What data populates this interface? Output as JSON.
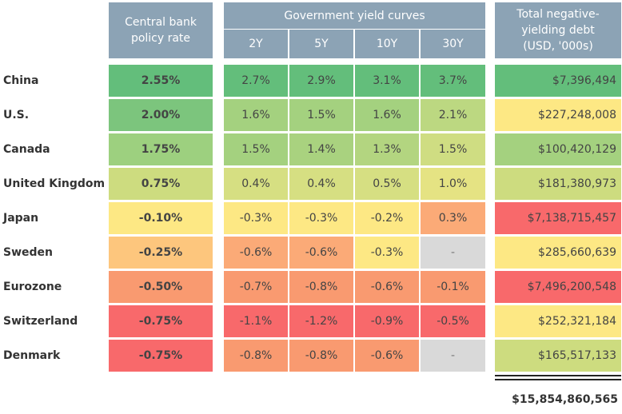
{
  "headers": {
    "policy_rate": "Central bank policy rate",
    "yield_curves": "Government yield curves",
    "tenors": [
      "2Y",
      "5Y",
      "10Y",
      "30Y"
    ],
    "debt": "Total negative-yielding debt (USD, '000s)"
  },
  "chart_data": {
    "type": "table",
    "columns": [
      "Central bank policy rate",
      "2Y",
      "5Y",
      "10Y",
      "30Y",
      "Total negative-yielding debt (USD, '000s)"
    ],
    "rows": [
      {
        "country": "China",
        "rate": "2.55%",
        "yields": [
          "2.7%",
          "2.9%",
          "3.1%",
          "3.7%"
        ],
        "debt": "$7,396,494"
      },
      {
        "country": "U.S.",
        "rate": "2.00%",
        "yields": [
          "1.6%",
          "1.5%",
          "1.6%",
          "2.1%"
        ],
        "debt": "$227,248,008"
      },
      {
        "country": "Canada",
        "rate": "1.75%",
        "yields": [
          "1.5%",
          "1.4%",
          "1.3%",
          "1.5%"
        ],
        "debt": "$100,420,129"
      },
      {
        "country": "United Kingdom",
        "rate": "0.75%",
        "yields": [
          "0.4%",
          "0.4%",
          "0.5%",
          "1.0%"
        ],
        "debt": "$181,380,973"
      },
      {
        "country": "Japan",
        "rate": "-0.10%",
        "yields": [
          "-0.3%",
          "-0.3%",
          "-0.2%",
          "0.3%"
        ],
        "debt": "$7,138,715,457"
      },
      {
        "country": "Sweden",
        "rate": "-0.25%",
        "yields": [
          "-0.6%",
          "-0.6%",
          "-0.3%",
          "-"
        ],
        "debt": "$285,660,639"
      },
      {
        "country": "Eurozone",
        "rate": "-0.50%",
        "yields": [
          "-0.7%",
          "-0.8%",
          "-0.6%",
          "-0.1%"
        ],
        "debt": "$7,496,200,548"
      },
      {
        "country": "Switzerland",
        "rate": "-0.75%",
        "yields": [
          "-1.1%",
          "-1.2%",
          "-0.9%",
          "-0.5%"
        ],
        "debt": "$252,321,184"
      },
      {
        "country": "Denmark",
        "rate": "-0.75%",
        "yields": [
          "-0.8%",
          "-0.8%",
          "-0.6%",
          "-"
        ],
        "debt": "$165,517,133"
      }
    ],
    "colors": {
      "rate": [
        "#63be7b",
        "#7cc57d",
        "#9dd07f",
        "#cddc7f",
        "#fde884",
        "#fdc67d",
        "#f99a70",
        "#f8696b",
        "#f8696b"
      ],
      "yields": [
        [
          "#63be7b",
          "#63be7b",
          "#63be7b",
          "#63be7b"
        ],
        [
          "#a4d17f",
          "#a4d17f",
          "#a4d17f",
          "#bcd881"
        ],
        [
          "#a4d17f",
          "#a9d27f",
          "#b3d580",
          "#cfdd82"
        ],
        [
          "#d6df82",
          "#d6df82",
          "#d6df82",
          "#e5e383"
        ],
        [
          "#fde884",
          "#fde884",
          "#fde884",
          "#fbaa77"
        ],
        [
          "#fbaa77",
          "#fbaa77",
          "#fde884",
          "#d9d9d9"
        ],
        [
          "#f99a70",
          "#f99a70",
          "#f99a70",
          "#f99a70"
        ],
        [
          "#f8696b",
          "#f8696b",
          "#f8696b",
          "#f8696b"
        ],
        [
          "#f99a70",
          "#f99a70",
          "#f99a70",
          "#d9d9d9"
        ]
      ],
      "debt": [
        "#63be7b",
        "#fde884",
        "#a4d17f",
        "#cddc7f",
        "#f8696b",
        "#fde884",
        "#f8696b",
        "#fde884",
        "#cddc7f"
      ]
    },
    "total": "$15,854,860,565"
  }
}
